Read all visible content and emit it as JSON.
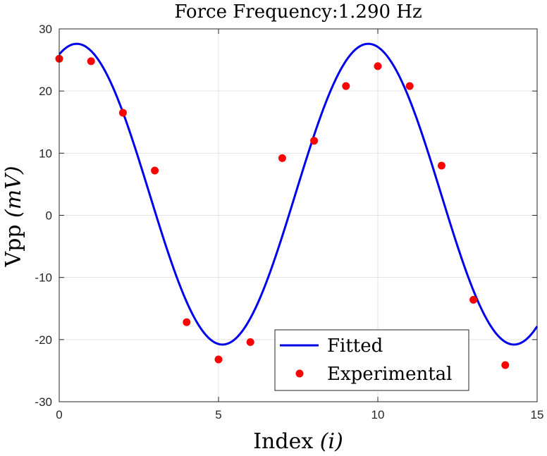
{
  "chart_data": {
    "type": "scatter",
    "title": "Force Frequency:1.290 Hz",
    "xlabel": "Index (i)",
    "xlabel_text": "Index ",
    "xlabel_var": "(i)",
    "ylabel": "Vpp (mV)",
    "ylabel_text": "Vpp ",
    "ylabel_var": "(mV)",
    "xlim": [
      0,
      15
    ],
    "ylim": [
      -30,
      30
    ],
    "xticks": [
      0,
      5,
      10,
      15
    ],
    "yticks": [
      -30,
      -20,
      -10,
      0,
      10,
      20,
      30
    ],
    "grid": true,
    "legend_position": "bottom-right",
    "series": [
      {
        "name": "Fitted",
        "kind": "line",
        "color": "#0000ee",
        "model": {
          "offset": 3.4,
          "amplitude": 24.2,
          "period": 9.15,
          "phase_x": 0.55
        }
      },
      {
        "name": "Experimental",
        "kind": "scatter",
        "color": "#ff0000",
        "x": [
          0,
          1,
          2,
          3,
          4,
          5,
          6,
          7,
          8,
          9,
          10,
          11,
          12,
          13,
          14
        ],
        "y": [
          25.2,
          24.8,
          16.5,
          7.2,
          -17.2,
          -23.2,
          -20.4,
          9.2,
          12.0,
          20.8,
          24.0,
          20.8,
          8.0,
          -13.6,
          -24.1
        ]
      }
    ]
  }
}
